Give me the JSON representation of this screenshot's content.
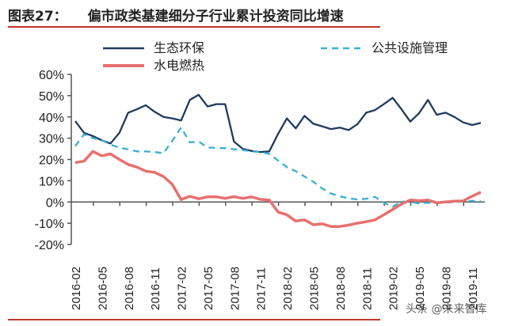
{
  "header": {
    "figure_label": "图表27：",
    "title": "偏市政类基建细分子行业累计投资同比增速"
  },
  "watermark": "头条 @未来智库",
  "chart_data": {
    "type": "line",
    "title": "偏市政类基建细分子行业累计投资同比增速",
    "ylim": [
      -20,
      60
    ],
    "yticks": [
      "60%",
      "50%",
      "40%",
      "30%",
      "20%",
      "10%",
      "0%",
      "-10%",
      "-20%"
    ],
    "ytick_values": [
      60,
      50,
      40,
      30,
      20,
      10,
      0,
      -10,
      -20
    ],
    "xtick_labels": [
      "2016-02",
      "2016-05",
      "2016-08",
      "2016-11",
      "2017-02",
      "2017-05",
      "2017-08",
      "2017-11",
      "2018-02",
      "2018-05",
      "2018-08",
      "2018-11",
      "2019-02",
      "2019-05",
      "2019-08",
      "2019-11"
    ],
    "x": [
      "2016-02",
      "2016-03",
      "2016-04",
      "2016-05",
      "2016-06",
      "2016-07",
      "2016-08",
      "2016-09",
      "2016-10",
      "2016-11",
      "2016-12",
      "2017-01",
      "2017-02",
      "2017-03",
      "2017-04",
      "2017-05",
      "2017-06",
      "2017-07",
      "2017-08",
      "2017-09",
      "2017-10",
      "2017-11",
      "2017-12",
      "2018-01",
      "2018-02",
      "2018-03",
      "2018-04",
      "2018-05",
      "2018-06",
      "2018-07",
      "2018-08",
      "2018-09",
      "2018-10",
      "2018-11",
      "2018-12",
      "2019-01",
      "2019-02",
      "2019-03",
      "2019-04",
      "2019-05",
      "2019-06",
      "2019-07",
      "2019-08",
      "2019-09",
      "2019-10",
      "2019-11",
      "2019-12"
    ],
    "legend_position": "top",
    "grid": false,
    "series": [
      {
        "name": "生态环保",
        "color": "#1f3a5f",
        "style": "solid",
        "values": [
          38,
          32.5,
          31,
          29,
          27.5,
          32.5,
          42,
          43.6,
          45.5,
          42.4,
          40,
          39.3,
          38.3,
          48,
          50.4,
          44.9,
          46,
          46,
          28.4,
          25,
          24,
          23.5,
          23.8,
          32,
          39.3,
          34.6,
          40.5,
          36.8,
          35.6,
          34.3,
          35,
          33.8,
          36.6,
          42,
          43.2,
          46,
          49,
          43.6,
          37.8,
          41.8,
          48,
          41,
          42,
          40,
          37.4,
          36.2,
          37.2
        ]
      },
      {
        "name": "公共设施管理",
        "color": "#3ab0d0",
        "style": "dashed",
        "values": [
          26.3,
          31.8,
          30,
          29.1,
          26.9,
          25.6,
          24.7,
          23.8,
          23.8,
          23.5,
          22.9,
          28.7,
          35,
          28,
          28.4,
          25.6,
          25.4,
          25.3,
          24.8,
          24.4,
          23.8,
          23.5,
          22.6,
          19.5,
          16.4,
          14.5,
          12,
          9.5,
          6.4,
          4,
          2.7,
          1.7,
          1.2,
          1.5,
          2.4,
          -0.4,
          -2.2,
          0.2,
          0,
          -0.7,
          -0.4,
          -0.5,
          -0.3,
          0,
          0.2,
          0.5,
          0.3
        ]
      },
      {
        "name": "水电燃热",
        "color": "#e8706f",
        "style": "solid",
        "values": [
          18.5,
          19.2,
          23.8,
          21.7,
          22.6,
          20,
          17.6,
          16.4,
          14.5,
          13.9,
          12,
          8.3,
          1.1,
          2.7,
          1.5,
          2.4,
          2.4,
          1.7,
          2.5,
          1.7,
          2.4,
          1.2,
          0.9,
          -4.7,
          -6,
          -9,
          -8.4,
          -10.7,
          -10.3,
          -11.5,
          -11.5,
          -10.9,
          -10,
          -9.3,
          -8.4,
          -6,
          -3.5,
          -1,
          0.9,
          0.6,
          0.9,
          -0.4,
          0,
          0.4,
          0.5,
          2.7,
          4.6
        ]
      }
    ]
  }
}
